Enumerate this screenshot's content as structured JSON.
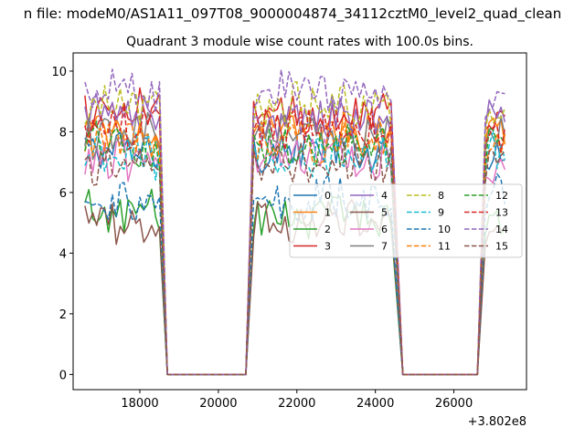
{
  "chart_data": {
    "type": "line",
    "suptitle": "n file: modeM0/AS1A11_097T08_9000004874_34112cztM0_level2_quad_clean",
    "title": "Quadrant 3 module wise count rates with 100.0s bins.",
    "xlabel": "",
    "ylabel": "",
    "x_offset_label": "+3.802e8",
    "xlim": [
      16300,
      27850
    ],
    "ylim": [
      -0.5,
      10.6
    ],
    "xticks": [
      18000,
      20000,
      22000,
      24000,
      26000
    ],
    "xtick_labels": [
      "18000",
      "20000",
      "22000",
      "24000",
      "26000"
    ],
    "yticks": [
      0,
      2,
      4,
      6,
      8,
      10
    ],
    "ytick_labels": [
      "0",
      "2",
      "4",
      "6",
      "8",
      "10"
    ],
    "grid": false,
    "legend_position": "center-right",
    "bin_seconds": 100,
    "segments": [
      {
        "on_start": 16600,
        "on_end": 18500,
        "zero_start": 18700,
        "zero_end": 20700
      },
      {
        "on_start": 20900,
        "on_end": 24400,
        "zero_start": 24700,
        "zero_end": 26600
      },
      {
        "on_start": 26800,
        "on_end": 27300
      }
    ],
    "series": [
      {
        "name": "0",
        "level": 7.4,
        "style": "solid",
        "color": "#1f77b4"
      },
      {
        "name": "1",
        "level": 8.0,
        "style": "solid",
        "color": "#ff7f0e"
      },
      {
        "name": "2",
        "level": 5.3,
        "style": "solid",
        "color": "#2ca02c"
      },
      {
        "name": "3",
        "level": 8.6,
        "style": "solid",
        "color": "#d62728"
      },
      {
        "name": "4",
        "level": 8.5,
        "style": "solid",
        "color": "#9467bd"
      },
      {
        "name": "5",
        "level": 5.0,
        "style": "solid",
        "color": "#8c564b"
      },
      {
        "name": "6",
        "level": 7.1,
        "style": "solid",
        "color": "#e377c2"
      },
      {
        "name": "7",
        "level": 7.8,
        "style": "solid",
        "color": "#7f7f7f"
      },
      {
        "name": "8",
        "level": 8.8,
        "style": "dashed",
        "color": "#bcbd22"
      },
      {
        "name": "9",
        "level": 7.2,
        "style": "dashed",
        "color": "#17becf"
      },
      {
        "name": "10",
        "level": 5.8,
        "style": "dashed",
        "color": "#1f77b4"
      },
      {
        "name": "11",
        "level": 7.7,
        "style": "dashed",
        "color": "#ff7f0e"
      },
      {
        "name": "12",
        "level": 7.5,
        "style": "dashed",
        "color": "#2ca02c"
      },
      {
        "name": "13",
        "level": 8.1,
        "style": "dashed",
        "color": "#d62728"
      },
      {
        "name": "14",
        "level": 9.3,
        "style": "dashed",
        "color": "#9467bd"
      },
      {
        "name": "15",
        "level": 7.0,
        "style": "dashed",
        "color": "#8c564b"
      }
    ]
  }
}
